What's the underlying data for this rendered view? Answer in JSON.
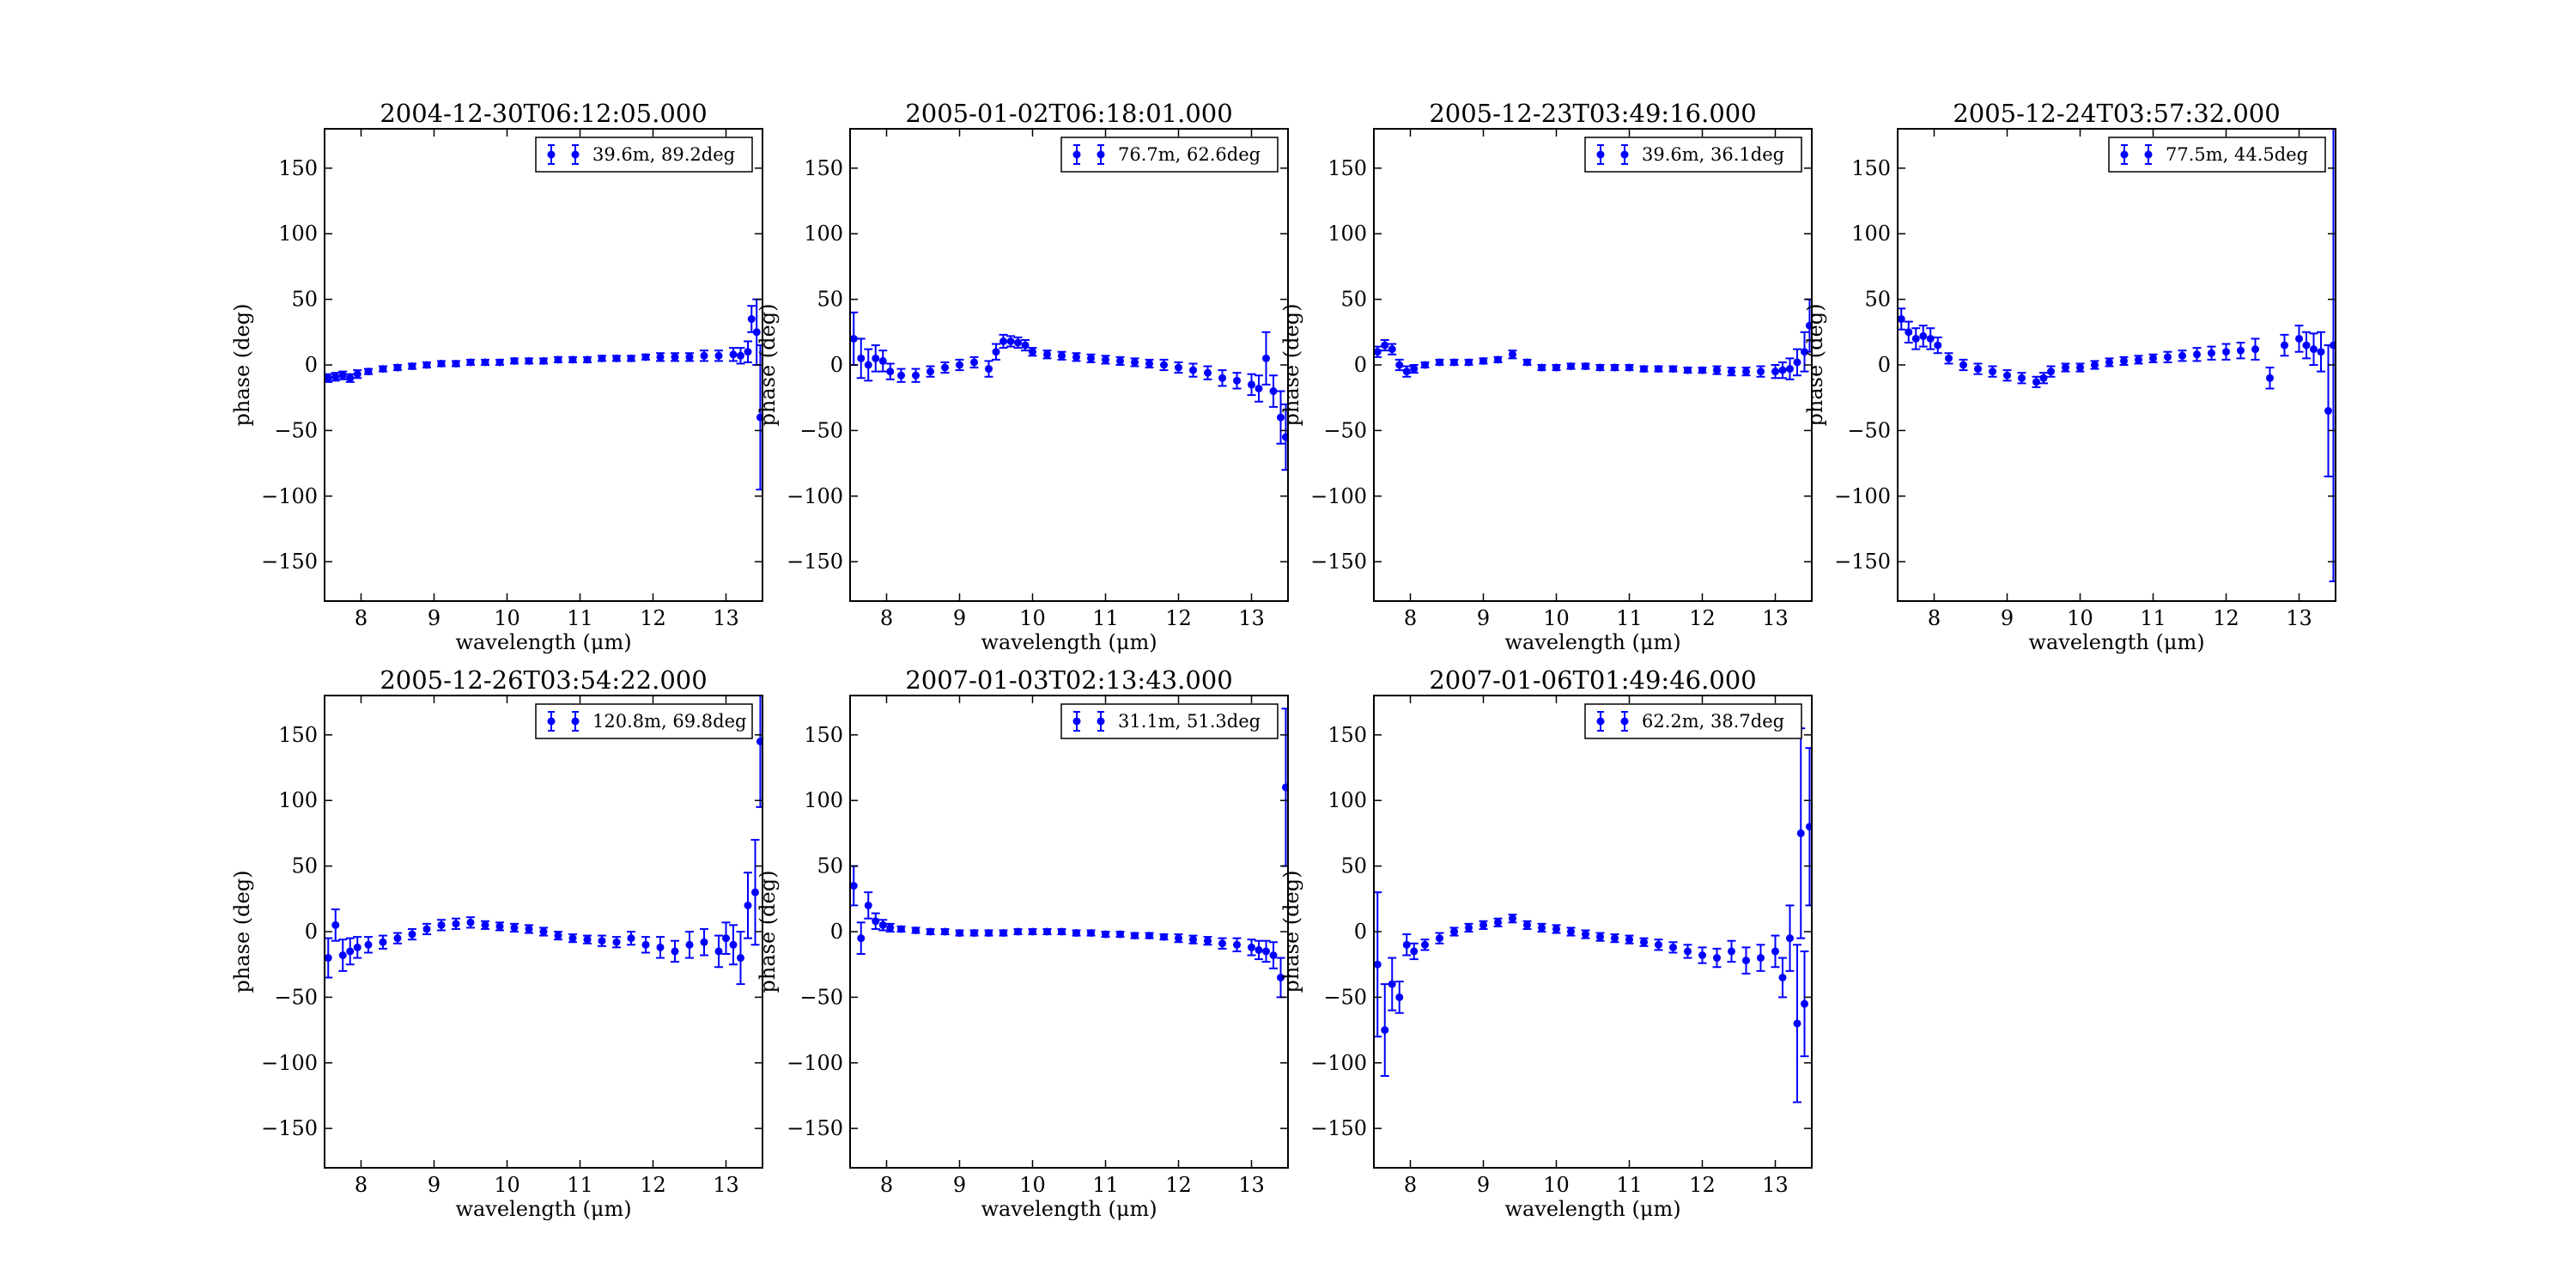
{
  "chart_data": [
    {
      "type": "scatter",
      "title": "2004-12-30T06:12:05.000",
      "xlabel": "wavelength (μm)",
      "ylabel": "phase (deg)",
      "xlim": [
        7.5,
        13.5
      ],
      "ylim": [
        -180,
        180
      ],
      "xticks": [
        8,
        9,
        10,
        11,
        12,
        13
      ],
      "yticks": [
        -150,
        -100,
        -50,
        0,
        50,
        100,
        150
      ],
      "legend": "top-right",
      "grid": false,
      "series": [
        {
          "name": "39.6m, 89.2deg",
          "color": "#0000ff",
          "x": [
            7.55,
            7.65,
            7.75,
            7.85,
            7.95,
            8.1,
            8.3,
            8.5,
            8.7,
            8.9,
            9.1,
            9.3,
            9.5,
            9.7,
            9.9,
            10.1,
            10.3,
            10.5,
            10.7,
            10.9,
            11.1,
            11.3,
            11.5,
            11.7,
            11.9,
            12.1,
            12.3,
            12.5,
            12.7,
            12.9,
            13.1,
            13.2,
            13.3,
            13.35,
            13.42,
            13.47
          ],
          "y": [
            -10,
            -9,
            -8,
            -10,
            -7,
            -5,
            -3,
            -2,
            -1,
            0,
            1,
            1,
            2,
            2,
            2,
            3,
            3,
            3,
            4,
            4,
            4,
            5,
            5,
            5,
            6,
            6,
            6,
            6,
            7,
            7,
            8,
            7,
            10,
            35,
            25,
            -40
          ],
          "err": [
            3,
            3,
            3,
            3,
            3,
            2,
            2,
            2,
            2,
            2,
            2,
            2,
            2,
            2,
            2,
            2,
            2,
            2,
            2,
            2,
            2,
            2,
            2,
            2,
            2,
            3,
            3,
            3,
            4,
            4,
            5,
            6,
            8,
            10,
            25,
            55
          ]
        }
      ]
    },
    {
      "type": "scatter",
      "title": "2005-01-02T06:18:01.000",
      "xlabel": "wavelength (μm)",
      "ylabel": "phase (deg)",
      "xlim": [
        7.5,
        13.5
      ],
      "ylim": [
        -180,
        180
      ],
      "xticks": [
        8,
        9,
        10,
        11,
        12,
        13
      ],
      "yticks": [
        -150,
        -100,
        -50,
        0,
        50,
        100,
        150
      ],
      "legend": "top-right",
      "grid": false,
      "series": [
        {
          "name": "76.7m, 62.6deg",
          "color": "#0000ff",
          "x": [
            7.55,
            7.65,
            7.75,
            7.85,
            7.95,
            8.05,
            8.2,
            8.4,
            8.6,
            8.8,
            9.0,
            9.2,
            9.4,
            9.5,
            9.6,
            9.7,
            9.8,
            9.9,
            10.0,
            10.2,
            10.4,
            10.6,
            10.8,
            11.0,
            11.2,
            11.4,
            11.6,
            11.8,
            12.0,
            12.2,
            12.4,
            12.6,
            12.8,
            13.0,
            13.1,
            13.2,
            13.3,
            13.4,
            13.47
          ],
          "y": [
            20,
            5,
            0,
            5,
            3,
            -5,
            -8,
            -8,
            -5,
            -2,
            0,
            2,
            -3,
            10,
            18,
            18,
            17,
            15,
            10,
            8,
            7,
            6,
            5,
            4,
            3,
            2,
            1,
            0,
            -2,
            -4,
            -6,
            -10,
            -12,
            -15,
            -18,
            5,
            -20,
            -40,
            -55
          ],
          "err": [
            20,
            15,
            12,
            10,
            8,
            6,
            5,
            5,
            4,
            4,
            4,
            4,
            6,
            6,
            5,
            4,
            4,
            4,
            3,
            3,
            3,
            3,
            3,
            3,
            3,
            3,
            3,
            4,
            4,
            5,
            5,
            6,
            6,
            8,
            10,
            20,
            12,
            20,
            25
          ]
        }
      ]
    },
    {
      "type": "scatter",
      "title": "2005-12-23T03:49:16.000",
      "xlabel": "wavelength (μm)",
      "ylabel": "phase (deg)",
      "xlim": [
        7.5,
        13.5
      ],
      "ylim": [
        -180,
        180
      ],
      "xticks": [
        8,
        9,
        10,
        11,
        12,
        13
      ],
      "yticks": [
        -150,
        -100,
        -50,
        0,
        50,
        100,
        150
      ],
      "legend": "top-right",
      "grid": false,
      "series": [
        {
          "name": "39.6m, 36.1deg",
          "color": "#0000ff",
          "x": [
            7.55,
            7.65,
            7.75,
            7.85,
            7.95,
            8.05,
            8.2,
            8.4,
            8.6,
            8.8,
            9.0,
            9.2,
            9.4,
            9.6,
            9.8,
            10.0,
            10.2,
            10.4,
            10.6,
            10.8,
            11.0,
            11.2,
            11.4,
            11.6,
            11.8,
            12.0,
            12.2,
            12.4,
            12.6,
            12.8,
            13.0,
            13.1,
            13.2,
            13.3,
            13.4,
            13.47
          ],
          "y": [
            10,
            15,
            12,
            0,
            -5,
            -3,
            0,
            2,
            2,
            2,
            3,
            4,
            8,
            2,
            -2,
            -2,
            -1,
            -1,
            -2,
            -2,
            -2,
            -3,
            -3,
            -3,
            -4,
            -4,
            -4,
            -5,
            -5,
            -5,
            -5,
            -4,
            -3,
            2,
            10,
            30
          ],
          "err": [
            4,
            4,
            4,
            4,
            4,
            3,
            2,
            2,
            2,
            2,
            2,
            2,
            3,
            2,
            2,
            2,
            2,
            2,
            2,
            2,
            2,
            2,
            2,
            2,
            2,
            2,
            3,
            3,
            3,
            4,
            5,
            6,
            8,
            10,
            15,
            20
          ]
        }
      ]
    },
    {
      "type": "scatter",
      "title": "2005-12-24T03:57:32.000",
      "xlabel": "wavelength (μm)",
      "ylabel": "phase (deg)",
      "xlim": [
        7.5,
        13.5
      ],
      "ylim": [
        -180,
        180
      ],
      "xticks": [
        8,
        9,
        10,
        11,
        12,
        13
      ],
      "yticks": [
        -150,
        -100,
        -50,
        0,
        50,
        100,
        150
      ],
      "legend": "top-right",
      "grid": false,
      "series": [
        {
          "name": "77.5m, 44.5deg",
          "color": "#0000ff",
          "x": [
            7.55,
            7.65,
            7.75,
            7.85,
            7.95,
            8.05,
            8.2,
            8.4,
            8.6,
            8.8,
            9.0,
            9.2,
            9.4,
            9.5,
            9.6,
            9.8,
            10.0,
            10.2,
            10.4,
            10.6,
            10.8,
            11.0,
            11.2,
            11.4,
            11.6,
            11.8,
            12.0,
            12.2,
            12.4,
            12.6,
            12.8,
            13.0,
            13.1,
            13.2,
            13.3,
            13.4,
            13.47
          ],
          "y": [
            35,
            25,
            20,
            22,
            20,
            15,
            5,
            0,
            -3,
            -5,
            -8,
            -10,
            -13,
            -10,
            -5,
            -2,
            -2,
            0,
            2,
            3,
            4,
            5,
            6,
            7,
            8,
            9,
            10,
            11,
            12,
            -10,
            15,
            20,
            15,
            12,
            10,
            -35,
            15
          ],
          "err": [
            8,
            8,
            8,
            8,
            8,
            6,
            4,
            4,
            4,
            4,
            4,
            4,
            4,
            4,
            4,
            3,
            3,
            3,
            3,
            3,
            3,
            3,
            4,
            4,
            5,
            5,
            6,
            6,
            8,
            8,
            8,
            10,
            10,
            12,
            15,
            50,
            180
          ]
        }
      ]
    },
    {
      "type": "scatter",
      "title": "2005-12-26T03:54:22.000",
      "xlabel": "wavelength (μm)",
      "ylabel": "phase (deg)",
      "xlim": [
        7.5,
        13.5
      ],
      "ylim": [
        -180,
        180
      ],
      "xticks": [
        8,
        9,
        10,
        11,
        12,
        13
      ],
      "yticks": [
        -150,
        -100,
        -50,
        0,
        50,
        100,
        150
      ],
      "legend": "top-right",
      "grid": false,
      "series": [
        {
          "name": "120.8m, 69.8deg",
          "color": "#0000ff",
          "x": [
            7.55,
            7.65,
            7.75,
            7.85,
            7.95,
            8.1,
            8.3,
            8.5,
            8.7,
            8.9,
            9.1,
            9.3,
            9.5,
            9.7,
            9.9,
            10.1,
            10.3,
            10.5,
            10.7,
            10.9,
            11.1,
            11.3,
            11.5,
            11.7,
            11.9,
            12.1,
            12.3,
            12.5,
            12.7,
            12.9,
            13.0,
            13.1,
            13.2,
            13.3,
            13.4,
            13.47
          ],
          "y": [
            -20,
            5,
            -18,
            -15,
            -12,
            -10,
            -8,
            -5,
            -2,
            2,
            5,
            6,
            7,
            5,
            4,
            3,
            2,
            0,
            -3,
            -5,
            -6,
            -7,
            -8,
            -5,
            -10,
            -12,
            -15,
            -10,
            -8,
            -15,
            -5,
            -10,
            -20,
            20,
            30,
            145
          ],
          "err": [
            15,
            12,
            12,
            10,
            8,
            6,
            5,
            4,
            4,
            4,
            4,
            4,
            4,
            3,
            3,
            3,
            3,
            3,
            3,
            3,
            3,
            4,
            4,
            5,
            6,
            8,
            8,
            10,
            10,
            12,
            12,
            15,
            20,
            25,
            40,
            50
          ]
        }
      ]
    },
    {
      "type": "scatter",
      "title": "2007-01-03T02:13:43.000",
      "xlabel": "wavelength (μm)",
      "ylabel": "phase (deg)",
      "xlim": [
        7.5,
        13.5
      ],
      "ylim": [
        -180,
        180
      ],
      "xticks": [
        8,
        9,
        10,
        11,
        12,
        13
      ],
      "yticks": [
        -150,
        -100,
        -50,
        0,
        50,
        100,
        150
      ],
      "legend": "top-right",
      "grid": false,
      "series": [
        {
          "name": "31.1m, 51.3deg",
          "color": "#0000ff",
          "x": [
            7.55,
            7.65,
            7.75,
            7.85,
            7.95,
            8.05,
            8.2,
            8.4,
            8.6,
            8.8,
            9.0,
            9.2,
            9.4,
            9.6,
            9.8,
            10.0,
            10.2,
            10.4,
            10.6,
            10.8,
            11.0,
            11.2,
            11.4,
            11.6,
            11.8,
            12.0,
            12.2,
            12.4,
            12.6,
            12.8,
            13.0,
            13.1,
            13.2,
            13.3,
            13.4,
            13.47
          ],
          "y": [
            35,
            -5,
            20,
            8,
            5,
            3,
            2,
            1,
            0,
            0,
            -1,
            -1,
            -1,
            -1,
            0,
            0,
            0,
            0,
            -1,
            -1,
            -2,
            -2,
            -3,
            -3,
            -4,
            -5,
            -6,
            -7,
            -9,
            -10,
            -12,
            -14,
            -15,
            -18,
            -35,
            110
          ],
          "err": [
            15,
            12,
            10,
            6,
            4,
            3,
            2,
            2,
            2,
            2,
            2,
            2,
            2,
            2,
            2,
            2,
            2,
            2,
            2,
            2,
            2,
            2,
            2,
            2,
            2,
            3,
            3,
            3,
            4,
            5,
            6,
            7,
            8,
            10,
            15,
            60
          ]
        }
      ]
    },
    {
      "type": "scatter",
      "title": "2007-01-06T01:49:46.000",
      "xlabel": "wavelength (μm)",
      "ylabel": "phase (deg)",
      "xlim": [
        7.5,
        13.5
      ],
      "ylim": [
        -180,
        180
      ],
      "xticks": [
        8,
        9,
        10,
        11,
        12,
        13
      ],
      "yticks": [
        -150,
        -100,
        -50,
        0,
        50,
        100,
        150
      ],
      "legend": "top-right",
      "grid": false,
      "series": [
        {
          "name": "62.2m, 38.7deg",
          "color": "#0000ff",
          "x": [
            7.55,
            7.65,
            7.75,
            7.85,
            7.95,
            8.05,
            8.2,
            8.4,
            8.6,
            8.8,
            9.0,
            9.2,
            9.4,
            9.6,
            9.8,
            10.0,
            10.2,
            10.4,
            10.6,
            10.8,
            11.0,
            11.2,
            11.4,
            11.6,
            11.8,
            12.0,
            12.2,
            12.4,
            12.6,
            12.8,
            13.0,
            13.1,
            13.2,
            13.3,
            13.35,
            13.4,
            13.47
          ],
          "y": [
            -25,
            -75,
            -40,
            -50,
            -10,
            -15,
            -10,
            -5,
            0,
            3,
            5,
            7,
            10,
            5,
            3,
            2,
            0,
            -2,
            -4,
            -5,
            -6,
            -8,
            -10,
            -12,
            -15,
            -18,
            -20,
            -15,
            -22,
            -20,
            -15,
            -35,
            -5,
            -70,
            75,
            -55,
            80
          ],
          "err": [
            55,
            35,
            20,
            12,
            8,
            6,
            4,
            4,
            3,
            3,
            3,
            3,
            3,
            3,
            3,
            3,
            3,
            3,
            3,
            3,
            3,
            3,
            4,
            4,
            5,
            6,
            7,
            8,
            10,
            10,
            12,
            15,
            25,
            60,
            80,
            40,
            60
          ]
        }
      ]
    }
  ]
}
